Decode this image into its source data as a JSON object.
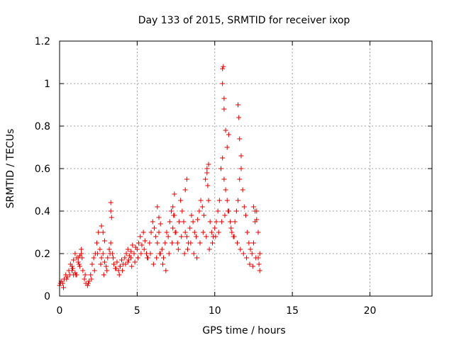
{
  "chart_data": {
    "type": "scatter",
    "title": "Day 133 of 2015, SRMTID for receiver ixop",
    "xlabel": "GPS time / hours",
    "ylabel": "SRMTID / TECUs",
    "xlim": [
      0,
      24
    ],
    "ylim": [
      0,
      1.2
    ],
    "xticks": [
      0,
      5,
      10,
      15,
      20
    ],
    "xtick_labels": [
      "0",
      "5",
      "10",
      "15",
      "20"
    ],
    "yticks": [
      0,
      0.2,
      0.4,
      0.6,
      0.8,
      1.0,
      1.2
    ],
    "ytick_labels": [
      "0",
      "0.2",
      "0.4",
      "0.6",
      "0.8",
      "1",
      "1.2"
    ],
    "grid": true,
    "marker": "plus",
    "color": "#e00000",
    "series": [
      {
        "name": "SRMTID",
        "x": [
          0.0,
          0.1,
          0.2,
          0.3,
          0.4,
          0.5,
          0.6,
          0.7,
          0.8,
          0.9,
          1.0,
          1.1,
          1.2,
          1.3,
          1.4,
          1.5,
          1.6,
          1.7,
          1.8,
          1.9,
          2.0,
          2.1,
          2.2,
          2.3,
          2.4,
          2.5,
          2.6,
          2.7,
          2.8,
          2.9,
          3.0,
          3.1,
          3.2,
          3.3,
          3.4,
          3.5,
          3.6,
          3.7,
          3.8,
          3.9,
          4.0,
          4.1,
          4.2,
          4.3,
          4.4,
          4.5,
          4.6,
          4.7,
          4.8,
          4.9,
          5.0,
          5.1,
          5.2,
          5.3,
          5.4,
          5.5,
          5.6,
          5.7,
          5.8,
          5.9,
          6.0,
          6.1,
          6.2,
          6.3,
          6.4,
          6.5,
          6.6,
          6.7,
          6.8,
          6.9,
          7.0,
          7.1,
          7.2,
          7.3,
          7.4,
          7.5,
          7.6,
          7.7,
          7.8,
          7.9,
          8.0,
          8.1,
          8.2,
          8.3,
          8.4,
          8.5,
          8.6,
          8.7,
          8.8,
          8.9,
          9.0,
          9.1,
          9.2,
          9.3,
          9.4,
          9.5,
          9.6,
          9.7,
          9.8,
          9.9,
          10.0,
          10.1,
          10.2,
          10.3,
          10.4,
          10.5,
          10.6,
          10.7,
          10.8,
          10.9,
          11.0,
          11.1,
          11.2,
          11.3,
          11.4,
          11.5,
          11.6,
          11.7,
          11.8,
          11.9,
          12.0,
          12.1,
          12.2,
          12.3,
          12.4,
          12.5,
          12.6,
          12.7,
          12.8,
          12.9,
          0.05,
          0.25,
          0.45,
          0.65,
          0.85,
          1.05,
          1.25,
          1.45,
          1.65,
          1.85,
          2.05,
          2.25,
          2.45,
          2.65,
          2.85,
          3.05,
          3.25,
          3.45,
          3.65,
          3.85,
          4.05,
          4.25,
          4.45,
          4.65,
          4.85,
          5.05,
          5.25,
          5.45,
          5.65,
          5.85,
          6.05,
          6.25,
          6.45,
          6.65,
          6.85,
          7.05,
          7.25,
          7.45,
          7.65,
          7.85,
          8.05,
          8.25,
          8.45,
          8.65,
          8.85,
          9.05,
          9.25,
          9.45,
          9.65,
          9.85,
          10.05,
          10.25,
          10.45,
          10.65,
          10.85,
          11.05,
          11.25,
          11.45,
          11.65,
          11.85,
          12.05,
          12.25,
          12.45,
          12.65,
          12.85,
          3.3,
          3.35,
          3.3,
          9.5,
          9.6,
          9.55,
          10.5,
          10.55,
          10.6,
          10.5,
          10.6,
          10.7,
          10.8,
          10.9,
          11.5,
          11.55,
          11.6,
          11.7,
          7.3,
          7.35,
          8.1,
          8.2,
          7.4,
          12.5,
          12.6,
          12.7,
          0.8,
          0.9,
          1.0,
          1.1,
          1.2,
          1.3,
          1.4,
          2.7,
          2.8,
          2.9,
          3.9,
          4.4,
          4.6,
          6.3,
          6.4,
          6.5,
          12.8,
          12.9
        ],
        "y": [
          0.05,
          0.07,
          0.06,
          0.08,
          0.1,
          0.09,
          0.12,
          0.15,
          0.14,
          0.17,
          0.2,
          0.18,
          0.16,
          0.19,
          0.22,
          0.12,
          0.08,
          0.06,
          0.05,
          0.07,
          0.1,
          0.15,
          0.18,
          0.2,
          0.25,
          0.3,
          0.22,
          0.18,
          0.2,
          0.16,
          0.14,
          0.18,
          0.22,
          0.25,
          0.2,
          0.15,
          0.13,
          0.16,
          0.12,
          0.14,
          0.17,
          0.15,
          0.18,
          0.2,
          0.22,
          0.19,
          0.21,
          0.24,
          0.2,
          0.23,
          0.22,
          0.25,
          0.28,
          0.24,
          0.3,
          0.26,
          0.2,
          0.18,
          0.25,
          0.3,
          0.35,
          0.32,
          0.28,
          0.25,
          0.3,
          0.2,
          0.22,
          0.18,
          0.25,
          0.3,
          0.28,
          0.35,
          0.4,
          0.32,
          0.38,
          0.3,
          0.25,
          0.35,
          0.45,
          0.4,
          0.35,
          0.3,
          0.28,
          0.25,
          0.32,
          0.38,
          0.35,
          0.3,
          0.28,
          0.36,
          0.4,
          0.45,
          0.42,
          0.38,
          0.55,
          0.6,
          0.45,
          0.35,
          0.3,
          0.28,
          0.32,
          0.35,
          0.4,
          0.45,
          0.6,
          0.65,
          0.55,
          0.5,
          0.45,
          0.4,
          0.35,
          0.3,
          0.28,
          0.35,
          0.4,
          0.45,
          0.55,
          0.6,
          0.5,
          0.42,
          0.38,
          0.3,
          0.25,
          0.22,
          0.2,
          0.25,
          0.35,
          0.4,
          0.3,
          0.2,
          0.06,
          0.04,
          0.08,
          0.1,
          0.13,
          0.1,
          0.15,
          0.18,
          0.1,
          0.06,
          0.08,
          0.12,
          0.2,
          0.15,
          0.1,
          0.12,
          0.2,
          0.18,
          0.13,
          0.1,
          0.12,
          0.15,
          0.17,
          0.14,
          0.16,
          0.18,
          0.2,
          0.22,
          0.18,
          0.2,
          0.15,
          0.18,
          0.2,
          0.15,
          0.12,
          0.2,
          0.25,
          0.3,
          0.22,
          0.28,
          0.2,
          0.22,
          0.25,
          0.2,
          0.18,
          0.25,
          0.3,
          0.28,
          0.22,
          0.25,
          0.28,
          0.3,
          0.35,
          0.38,
          0.4,
          0.32,
          0.28,
          0.25,
          0.22,
          0.2,
          0.18,
          0.15,
          0.14,
          0.18,
          0.15,
          0.4,
          0.37,
          0.44,
          0.58,
          0.62,
          0.52,
          1.0,
          1.08,
          0.93,
          1.07,
          0.88,
          0.78,
          0.7,
          0.76,
          0.9,
          0.84,
          0.74,
          0.66,
          0.42,
          0.38,
          0.5,
          0.55,
          0.48,
          0.42,
          0.4,
          0.36,
          0.12,
          0.1,
          0.11,
          0.1,
          0.18,
          0.14,
          0.2,
          0.33,
          0.3,
          0.26,
          0.14,
          0.16,
          0.18,
          0.42,
          0.37,
          0.34,
          0.18,
          0.12
        ]
      }
    ]
  }
}
